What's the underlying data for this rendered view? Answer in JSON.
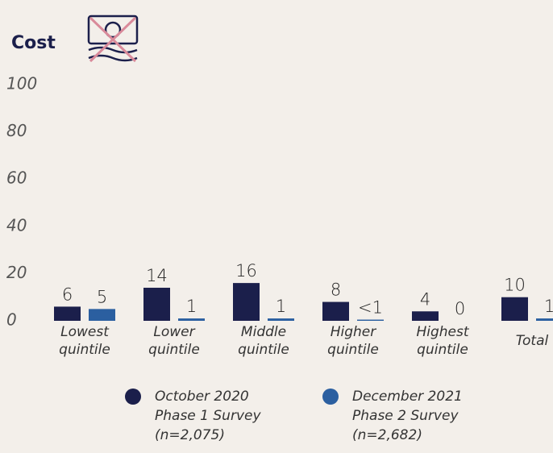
{
  "chart_data": {
    "type": "bar",
    "title": "Cost",
    "categories": [
      "Lowest quintile",
      "Lower quintile",
      "Middle quintile",
      "Higher quintile",
      "Highest quintile",
      "Total"
    ],
    "series": [
      {
        "name": "October 2020 Phase 1 Survey (n=2,075)",
        "color": "#1b1f4b",
        "values": [
          6,
          14,
          16,
          8,
          4,
          10
        ]
      },
      {
        "name": "December 2021 Phase 2 Survey (n=2,682)",
        "color": "#2b5fa0",
        "values": [
          5,
          1,
          1,
          0.5,
          0,
          1
        ],
        "value_labels": [
          "5",
          "1",
          "1",
          "<1",
          "0",
          "1"
        ]
      }
    ],
    "ylim": [
      0,
      100
    ],
    "yticks": [
      0,
      20,
      40,
      60,
      80,
      100
    ],
    "grid": false
  }
}
